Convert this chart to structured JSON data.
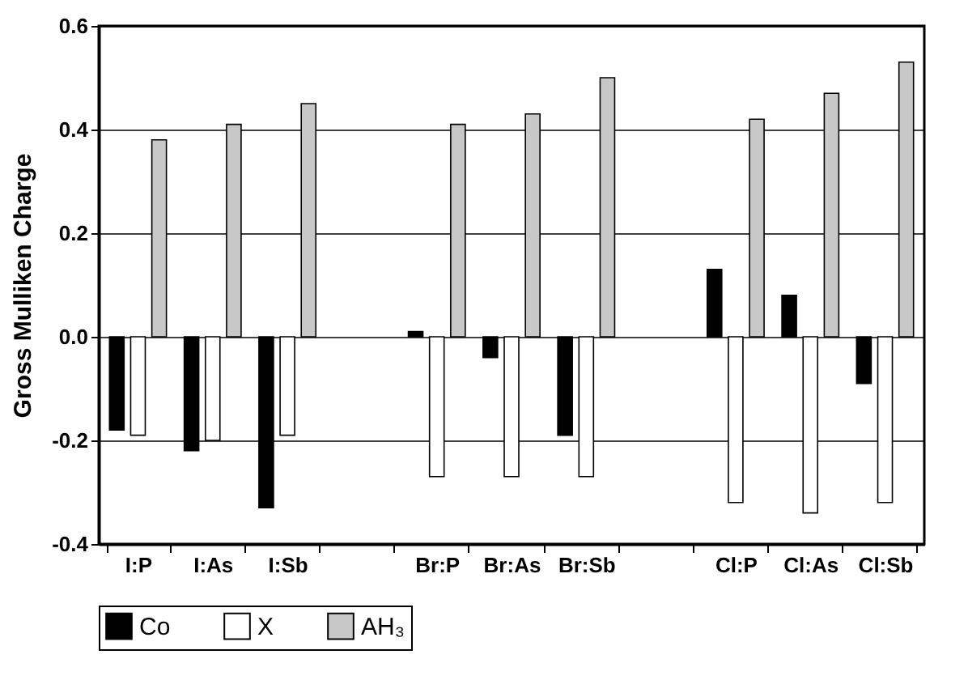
{
  "chart_data": {
    "type": "bar",
    "ylabel": "Gross Mulliken Charge",
    "categories": [
      "I:P",
      "I:As",
      "I:Sb",
      null,
      "Br:P",
      "Br:As",
      "Br:Sb",
      null,
      "Cl:P",
      "Cl:As",
      "Cl:Sb"
    ],
    "series": [
      {
        "name": "Co",
        "color": "#000000",
        "values": [
          -0.18,
          -0.22,
          -0.33,
          null,
          0.01,
          -0.04,
          -0.19,
          null,
          0.13,
          0.08,
          -0.09
        ]
      },
      {
        "name": "X",
        "color": "#ffffff",
        "values": [
          -0.19,
          -0.2,
          -0.19,
          null,
          -0.27,
          -0.27,
          -0.27,
          null,
          -0.32,
          -0.34,
          -0.32
        ]
      },
      {
        "name": "AH₃",
        "color": "#c8c8c8",
        "values": [
          0.38,
          0.41,
          0.45,
          null,
          0.41,
          0.43,
          0.5,
          null,
          0.42,
          0.47,
          0.53
        ]
      }
    ],
    "ylim": [
      -0.4,
      0.6
    ],
    "yticks": [
      -0.4,
      -0.2,
      {
        "value": 0,
        "label": "0.0"
      },
      0.2,
      0.4,
      0.6
    ],
    "grid": "y",
    "legend": "bottom"
  }
}
